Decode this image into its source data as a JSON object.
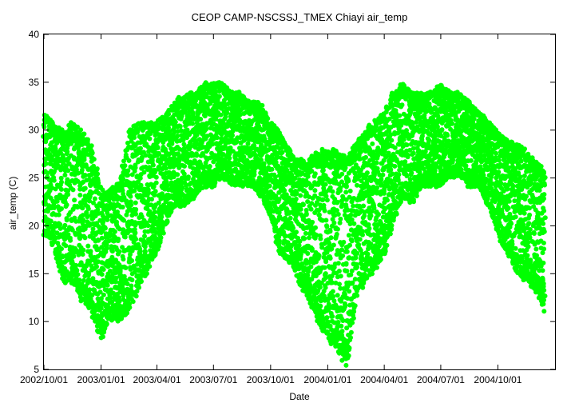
{
  "chart_data": {
    "type": "scatter",
    "title": "CEOP CAMP-NSCSSJ_TMEX Chiayi  air_temp",
    "xlabel": "Date",
    "ylabel": "air_temp (C)",
    "ylim": [
      5,
      40
    ],
    "yticks": [
      5,
      10,
      15,
      20,
      25,
      30,
      35,
      40
    ],
    "xlim": [
      "2002-10-01",
      "2005-01-01"
    ],
    "xticks": [
      "2002/10/01",
      "2003/01/01",
      "2003/04/01",
      "2003/07/01",
      "2003/10/01",
      "2004/01/01",
      "2004/04/01",
      "2004/07/01",
      "2004/10/01"
    ],
    "grid": false,
    "legend": "none",
    "series_color": "#00ff00",
    "series": [
      {
        "x": [
          "2002-10-01",
          "2002-10-15",
          "2002-11-01",
          "2002-11-15",
          "2002-12-01",
          "2002-12-15",
          "2003-01-01",
          "2003-01-15",
          "2003-02-01",
          "2003-02-15",
          "2003-03-01",
          "2003-03-15",
          "2003-04-01",
          "2003-04-15",
          "2003-05-01",
          "2003-05-15",
          "2003-06-01",
          "2003-06-15",
          "2003-07-01",
          "2003-07-15",
          "2003-08-01",
          "2003-08-15",
          "2003-09-01",
          "2003-09-15",
          "2003-10-01",
          "2003-10-15",
          "2003-11-01",
          "2003-11-15",
          "2003-12-01",
          "2003-12-15",
          "2004-01-01",
          "2004-01-15",
          "2004-02-01",
          "2004-02-15",
          "2004-03-01",
          "2004-03-15",
          "2004-04-01",
          "2004-04-15",
          "2004-05-01",
          "2004-05-15",
          "2004-06-01",
          "2004-06-15",
          "2004-07-01",
          "2004-07-15",
          "2004-08-01",
          "2004-08-15",
          "2004-09-01",
          "2004-09-15",
          "2004-10-01",
          "2004-10-15",
          "2004-11-01",
          "2004-11-15",
          "2004-12-01",
          "2004-12-15"
        ],
        "y_min": [
          19,
          18,
          14,
          14,
          12,
          11,
          8,
          10,
          10,
          11,
          13,
          15,
          17,
          20,
          22,
          22,
          23,
          24,
          24,
          25,
          24,
          24,
          24,
          23,
          21,
          17,
          16,
          14,
          12,
          10,
          8,
          7,
          5,
          12,
          14,
          15,
          17,
          20,
          23,
          22,
          24,
          24,
          24,
          25,
          25,
          24,
          24,
          22,
          19,
          17,
          15,
          14,
          13,
          11
        ],
        "y_max": [
          32,
          31,
          30,
          31,
          30,
          29,
          24,
          24,
          25,
          30,
          31,
          31,
          31,
          32,
          33,
          34,
          34,
          35,
          35,
          35,
          34,
          34,
          33,
          33,
          31,
          30,
          28,
          27,
          27,
          28,
          28,
          28,
          27,
          29,
          30,
          31,
          32,
          34,
          35,
          34,
          34,
          34,
          35,
          34,
          34,
          33,
          32,
          31,
          30,
          29,
          29,
          28,
          27,
          26
        ]
      }
    ]
  }
}
